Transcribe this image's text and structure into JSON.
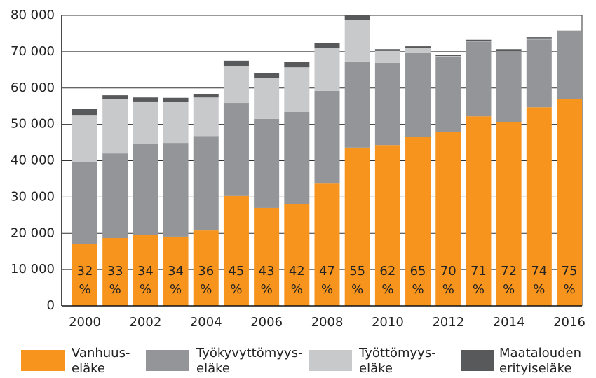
{
  "chart_data": {
    "type": "bar",
    "stacked": true,
    "categories": [
      "2000",
      null,
      "2002",
      null,
      "2004",
      null,
      "2006",
      null,
      "2008",
      null,
      "2010",
      null,
      "2012",
      null,
      "2014",
      null,
      "2016"
    ],
    "series": [
      {
        "name": "Vanhuus- eläke",
        "color": "#f7941d",
        "values": [
          17.0,
          18.7,
          19.5,
          19.1,
          20.8,
          30.3,
          27.0,
          28.0,
          33.7,
          43.6,
          44.3,
          46.6,
          48.0,
          52.2,
          50.7,
          54.7,
          56.9
        ],
        "value_labels": [
          "32 %",
          "33 %",
          "34 %",
          "34 %",
          "36 %",
          "45 %",
          "43 %",
          "42 %",
          "47 %",
          "55 %",
          "62 %",
          "65 %",
          "70 %",
          "71 %",
          "72 %",
          "74 %",
          "75 %"
        ]
      },
      {
        "name": "Työkyvyttömyys- eläke",
        "color": "#939598",
        "values": [
          22.7,
          23.3,
          25.2,
          25.8,
          26.0,
          25.6,
          24.5,
          25.4,
          25.5,
          23.7,
          22.6,
          23.0,
          20.6,
          20.5,
          19.3,
          18.7,
          18.7
        ]
      },
      {
        "name": "Työttömyys- eläke",
        "color": "#c8c9cb",
        "values": [
          12.9,
          14.9,
          11.6,
          11.2,
          10.6,
          10.2,
          11.2,
          12.3,
          11.9,
          11.5,
          3.3,
          1.5,
          0.2,
          0.1,
          0.1,
          0.1,
          0
        ]
      },
      {
        "name": "Maatalouden erityiseläke",
        "color": "#58595b",
        "values": [
          1.6,
          1.1,
          1.1,
          1.2,
          1.0,
          1.4,
          1.3,
          1.4,
          1.2,
          1.2,
          0.5,
          0.4,
          0.4,
          0.5,
          0.6,
          0.5,
          0.2
        ]
      }
    ],
    "value_scale": 1000,
    "ylim": [
      0,
      80000
    ],
    "yticks": [
      0,
      {
        "value": 10000,
        "label": "10 000"
      },
      {
        "value": 20000,
        "label": "20 000"
      },
      {
        "value": 30000,
        "label": "30 000"
      },
      {
        "value": 40000,
        "label": "40 000"
      },
      {
        "value": 50000,
        "label": "50 000"
      },
      {
        "value": 60000,
        "label": "60 000"
      },
      {
        "value": 70000,
        "label": "70 000"
      },
      {
        "value": 80000,
        "label": "80 000"
      }
    ],
    "grid": true
  }
}
